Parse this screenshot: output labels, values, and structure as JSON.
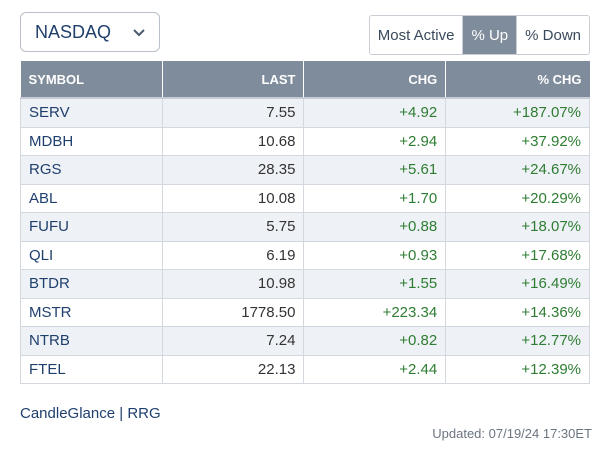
{
  "exchange_select": {
    "value": "NASDAQ"
  },
  "tabs": [
    {
      "label": "Most Active",
      "active": false
    },
    {
      "label": "% Up",
      "active": true
    },
    {
      "label": "% Down",
      "active": false
    }
  ],
  "table": {
    "headers": {
      "symbol": "SYMBOL",
      "last": "LAST",
      "chg": "CHG",
      "pct_chg": "% CHG"
    },
    "rows": [
      {
        "symbol": "SERV",
        "last": "7.55",
        "chg": "+4.92",
        "pct_chg": "+187.07%"
      },
      {
        "symbol": "MDBH",
        "last": "10.68",
        "chg": "+2.94",
        "pct_chg": "+37.92%"
      },
      {
        "symbol": "RGS",
        "last": "28.35",
        "chg": "+5.61",
        "pct_chg": "+24.67%"
      },
      {
        "symbol": "ABL",
        "last": "10.08",
        "chg": "+1.70",
        "pct_chg": "+20.29%"
      },
      {
        "symbol": "FUFU",
        "last": "5.75",
        "chg": "+0.88",
        "pct_chg": "+18.07%"
      },
      {
        "symbol": "QLI",
        "last": "6.19",
        "chg": "+0.93",
        "pct_chg": "+17.68%"
      },
      {
        "symbol": "BTDR",
        "last": "10.98",
        "chg": "+1.55",
        "pct_chg": "+16.49%"
      },
      {
        "symbol": "MSTR",
        "last": "1778.50",
        "chg": "+223.34",
        "pct_chg": "+14.36%"
      },
      {
        "symbol": "NTRB",
        "last": "7.24",
        "chg": "+0.82",
        "pct_chg": "+12.77%"
      },
      {
        "symbol": "FTEL",
        "last": "22.13",
        "chg": "+2.44",
        "pct_chg": "+12.39%"
      }
    ]
  },
  "footer": {
    "link1": "CandleGlance",
    "separator": "|",
    "link2": "RRG",
    "updated": "Updated: 07/19/24 17:30ET"
  },
  "colors": {
    "header_bg": "#7f8c9b",
    "positive": "#2e7d32",
    "symbol": "#1f3f6d",
    "row_alt": "#eef1f5"
  }
}
